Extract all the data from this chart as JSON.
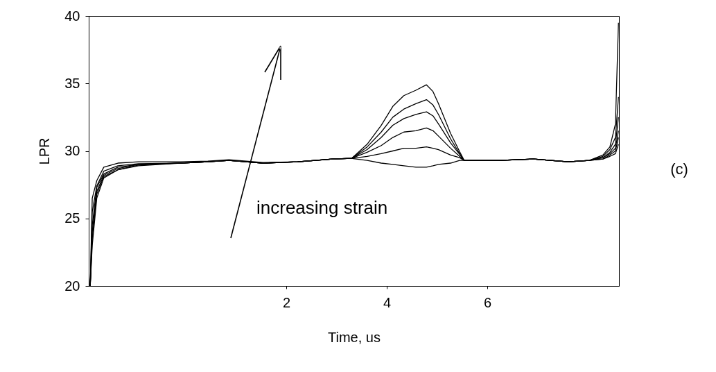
{
  "chart_data": {
    "type": "line",
    "xlabel": "Time, us",
    "ylabel": "LPR",
    "xlim": [
      -1.93,
      8.62
    ],
    "ylim": [
      20,
      40
    ],
    "xticks": [
      2,
      4,
      6
    ],
    "yticks": [
      20,
      25,
      30,
      35,
      40
    ],
    "grid": false,
    "legend": false,
    "line_style": "solid",
    "x": [
      -1.9,
      -1.86,
      -1.77,
      -1.63,
      -1.35,
      -0.94,
      -0.11,
      0.44,
      0.86,
      1.54,
      2.23,
      2.92,
      3.3,
      3.61,
      3.89,
      4.12,
      4.34,
      4.58,
      4.79,
      4.92,
      5.03,
      5.27,
      5.45,
      5.54,
      6.23,
      6.92,
      7.61,
      8.03,
      8.3,
      8.44,
      8.55,
      8.61
    ],
    "series": [
      {
        "color": "#000000",
        "values": [
          20,
          26.5,
          27.8,
          28.8,
          29.1,
          29.2,
          29.2,
          29.25,
          29.35,
          29.15,
          29.2,
          29.4,
          29.45,
          30.5,
          31.9,
          33.3,
          34.1,
          34.5,
          34.9,
          34.4,
          33.5,
          31.3,
          29.95,
          29.3,
          29.3,
          29.4,
          29.2,
          29.3,
          29.7,
          30.3,
          32,
          39.5
        ]
      },
      {
        "color": "#000000",
        "values": [
          20,
          25.5,
          27.4,
          28.5,
          28.9,
          29.05,
          29.1,
          29.2,
          29.3,
          29.1,
          29.2,
          29.4,
          29.45,
          30.3,
          31.4,
          32.5,
          33.1,
          33.5,
          33.8,
          33.4,
          32.7,
          30.9,
          29.8,
          29.3,
          29.3,
          29.4,
          29.2,
          29.3,
          29.6,
          30.1,
          31,
          34
        ]
      },
      {
        "color": "#000000",
        "values": [
          20,
          24.5,
          27.3,
          28.3,
          28.8,
          29,
          29.1,
          29.2,
          29.3,
          29.1,
          29.2,
          29.4,
          29.45,
          30.1,
          31,
          31.9,
          32.4,
          32.7,
          32.9,
          32.6,
          32,
          30.6,
          29.75,
          29.3,
          29.3,
          29.4,
          29.2,
          29.3,
          29.5,
          29.9,
          30.5,
          32.5
        ]
      },
      {
        "color": "#000000",
        "values": [
          20,
          24,
          27,
          28.2,
          28.7,
          29,
          29.1,
          29.2,
          29.3,
          29.1,
          29.2,
          29.4,
          29.45,
          29.9,
          30.4,
          31,
          31.4,
          31.5,
          31.7,
          31.5,
          31.1,
          30.2,
          29.6,
          29.3,
          29.3,
          29.4,
          29.2,
          29.3,
          29.5,
          29.8,
          30.2,
          31.5
        ]
      },
      {
        "color": "#000000",
        "values": [
          20,
          23.5,
          26.8,
          28.1,
          28.6,
          28.95,
          29.1,
          29.2,
          29.3,
          29.1,
          29.2,
          29.4,
          29.45,
          29.6,
          29.8,
          30,
          30.2,
          30.2,
          30.3,
          30.2,
          30.1,
          29.7,
          29.5,
          29.3,
          29.3,
          29.4,
          29.2,
          29.3,
          29.4,
          29.7,
          30,
          31
        ]
      },
      {
        "color": "#000000",
        "values": [
          20,
          23,
          26.5,
          28,
          28.6,
          28.9,
          29.1,
          29.2,
          29.3,
          29.1,
          29.2,
          29.4,
          29.45,
          29.3,
          29.1,
          29,
          28.9,
          28.8,
          28.8,
          28.9,
          29,
          29.1,
          29.3,
          29.3,
          29.3,
          29.4,
          29.2,
          29.3,
          29.4,
          29.6,
          29.8,
          30.5
        ]
      }
    ],
    "annotations": [
      "increasing strain",
      "(c)"
    ]
  }
}
